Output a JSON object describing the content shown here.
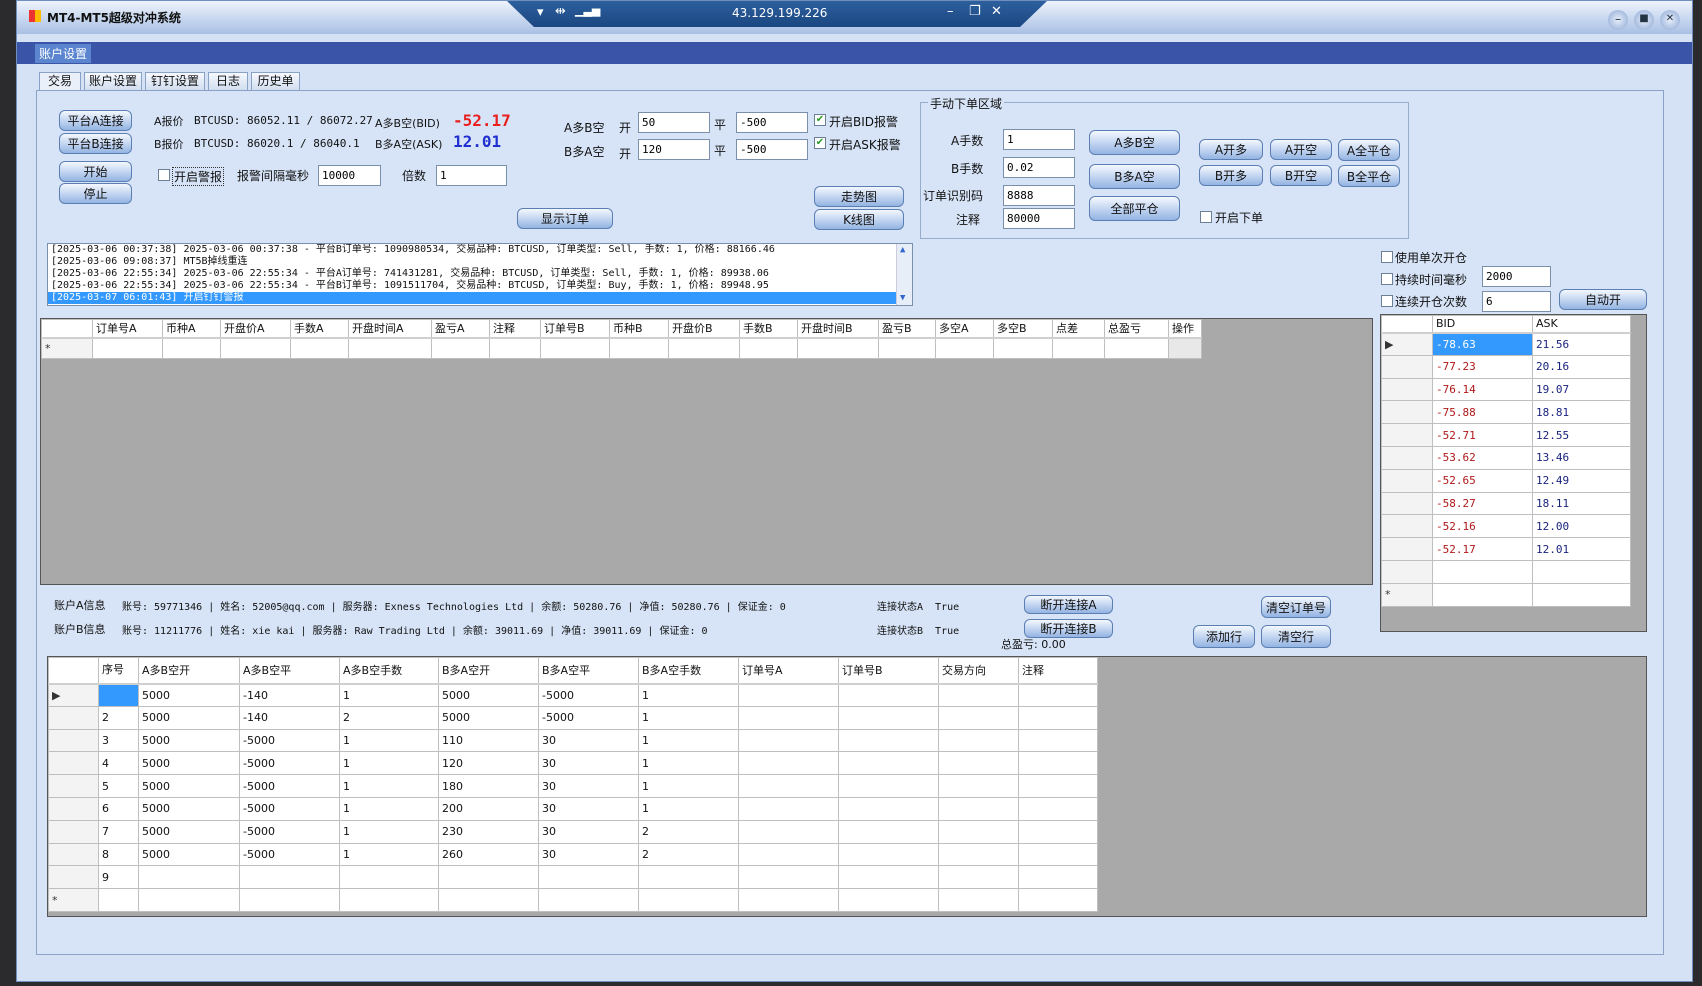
{
  "window": {
    "title": "MT4-MT5超级对冲系统",
    "remote_ip": "43.129.199.226"
  },
  "menu": {
    "account_settings": "账户设置"
  },
  "tabs": [
    "交易",
    "账户设置",
    "钉钉设置",
    "日志",
    "历史单"
  ],
  "left_buttons": {
    "connect_a": "平台A连接",
    "connect_b": "平台B连接",
    "start": "开始",
    "stop": "停止"
  },
  "quotes": {
    "a_label": "A报价",
    "a_text": "BTCUSD: 86052.11 / 86072.27",
    "b_label": "B报价",
    "b_text": "BTCUSD: 86020.1 / 86040.1",
    "bid_label": "A多B空(BID)",
    "bid_value": "-52.17",
    "ask_label": "B多A空(ASK)",
    "ask_value": "12.01",
    "colors": {
      "bid": "#e8201f",
      "ask": "#1f2fd0"
    }
  },
  "alarm": {
    "enable_label": "开启警报",
    "enabled": false,
    "interval_label": "报警间隔毫秒",
    "interval": "10000",
    "multiplier_label": "倍数",
    "multiplier": "1"
  },
  "thresholds": {
    "a_label": "A多B空",
    "b_label": "B多A空",
    "open": "开",
    "close": "平",
    "a_open": "50",
    "a_close": "-500",
    "b_open": "120",
    "b_close": "-500",
    "bid_alarm_label": "开启BID报警",
    "bid_alarm": true,
    "ask_alarm_label": "开启ASK报警",
    "ask_alarm": true
  },
  "buttons": {
    "show_orders": "显示订单",
    "trend_chart": "走势图",
    "kline_chart": "K线图"
  },
  "manual": {
    "title": "手动下单区域",
    "a_lots_label": "A手数",
    "a_lots": "1",
    "b_lots_label": "B手数",
    "b_lots": "0.02",
    "order_id_label": "订单识别码",
    "order_id": "8888",
    "comment_label": "注释",
    "comment": "80000",
    "a_long_b_short": "A多B空",
    "b_long_a_short": "B多A空",
    "close_all": "全部平仓",
    "a_buy": "A开多",
    "a_sell": "A开空",
    "a_close_all": "A全平仓",
    "b_buy": "B开多",
    "b_sell": "B开空",
    "b_close_all": "B全平仓",
    "enable_order_label": "开启下单",
    "enable_order": false
  },
  "log": [
    "[2025-03-06 00:37:38] 2025-03-06 00:37:38 - 平台B订单号: 1090980534, 交易品种: BTCUSD, 订单类型: Sell, 手数: 1, 价格: 88166.46",
    "[2025-03-06 09:08:37] MT5B掉线重连",
    "[2025-03-06 22:55:34] 2025-03-06 22:55:34 - 平台A订单号: 741431281, 交易品种: BTCUSD, 订单类型: Sell, 手数: 1, 价格: 89938.06",
    "[2025-03-06 22:55:34] 2025-03-06 22:55:34 - 平台B订单号: 1091511704, 交易品种: BTCUSD, 订单类型: Buy, 手数: 1, 价格: 89948.95",
    "[2025-03-07 06:01:43] 开启钉钉警报"
  ],
  "auto": {
    "single_open_label": "使用单次开仓",
    "duration_label": "持续时间毫秒",
    "duration": "2000",
    "count_label": "连续开仓次数",
    "count": "6",
    "auto_open": "自动开"
  },
  "orders_grid": {
    "columns": [
      "订单号A",
      "币种A",
      "开盘价A",
      "手数A",
      "开盘时间A",
      "盈亏A",
      "注释",
      "订单号B",
      "币种B",
      "开盘价B",
      "手数B",
      "开盘时间B",
      "盈亏B",
      "多空A",
      "多空B",
      "点差",
      "总盈亏",
      "操作"
    ]
  },
  "spread_grid": {
    "columns": [
      "BID",
      "ASK"
    ],
    "rows": [
      [
        "-78.63",
        "21.56"
      ],
      [
        "-77.23",
        "20.16"
      ],
      [
        "-76.14",
        "19.07"
      ],
      [
        "-75.88",
        "18.81"
      ],
      [
        "-52.71",
        "12.55"
      ],
      [
        "-53.62",
        "13.46"
      ],
      [
        "-52.65",
        "12.49"
      ],
      [
        "-58.27",
        "18.11"
      ],
      [
        "-52.16",
        "12.00"
      ],
      [
        "-52.17",
        "12.01"
      ]
    ]
  },
  "account_a": {
    "label": "账户A信息",
    "text": "账号: 59771346 | 姓名: 52005@qq.com | 服务器: Exness Technologies Ltd | 余额: 50280.76 | 净值: 50280.76 | 保证金: 0",
    "status": "连接状态A  True",
    "disconnect": "断开连接A"
  },
  "account_b": {
    "label": "账户B信息",
    "text": "账号: 11211776 | 姓名: xie kai | 服务器: Raw Trading Ltd | 余额: 39011.69 | 净值: 39011.69 | 保证金: 0",
    "status": "连接状态B  True",
    "disconnect": "断开连接B"
  },
  "total_pl": "总盈亏: 0.00",
  "row_buttons": {
    "clear_order_no": "清空订单号",
    "add_row": "添加行",
    "clear_rows": "清空行"
  },
  "plan_grid": {
    "columns": [
      "序号",
      "A多B空开",
      "A多B空平",
      "A多B空手数",
      "B多A空开",
      "B多A空平",
      "B多A空手数",
      "订单号A",
      "订单号B",
      "交易方向",
      "注释"
    ],
    "rows": [
      [
        "",
        "5000",
        "-140",
        "1",
        "5000",
        "-5000",
        "1",
        "",
        "",
        "",
        ""
      ],
      [
        "2",
        "5000",
        "-140",
        "2",
        "5000",
        "-5000",
        "1",
        "",
        "",
        "",
        ""
      ],
      [
        "3",
        "5000",
        "-5000",
        "1",
        "110",
        "30",
        "1",
        "",
        "",
        "",
        ""
      ],
      [
        "4",
        "5000",
        "-5000",
        "1",
        "120",
        "30",
        "1",
        "",
        "",
        "",
        ""
      ],
      [
        "5",
        "5000",
        "-5000",
        "1",
        "180",
        "30",
        "1",
        "",
        "",
        "",
        ""
      ],
      [
        "6",
        "5000",
        "-5000",
        "1",
        "200",
        "30",
        "1",
        "",
        "",
        "",
        ""
      ],
      [
        "7",
        "5000",
        "-5000",
        "1",
        "230",
        "30",
        "2",
        "",
        "",
        "",
        ""
      ],
      [
        "8",
        "5000",
        "-5000",
        "1",
        "260",
        "30",
        "2",
        "",
        "",
        "",
        ""
      ],
      [
        "9",
        "",
        "",
        "",
        "",
        "",
        "",
        "",
        "",
        "",
        ""
      ]
    ]
  }
}
